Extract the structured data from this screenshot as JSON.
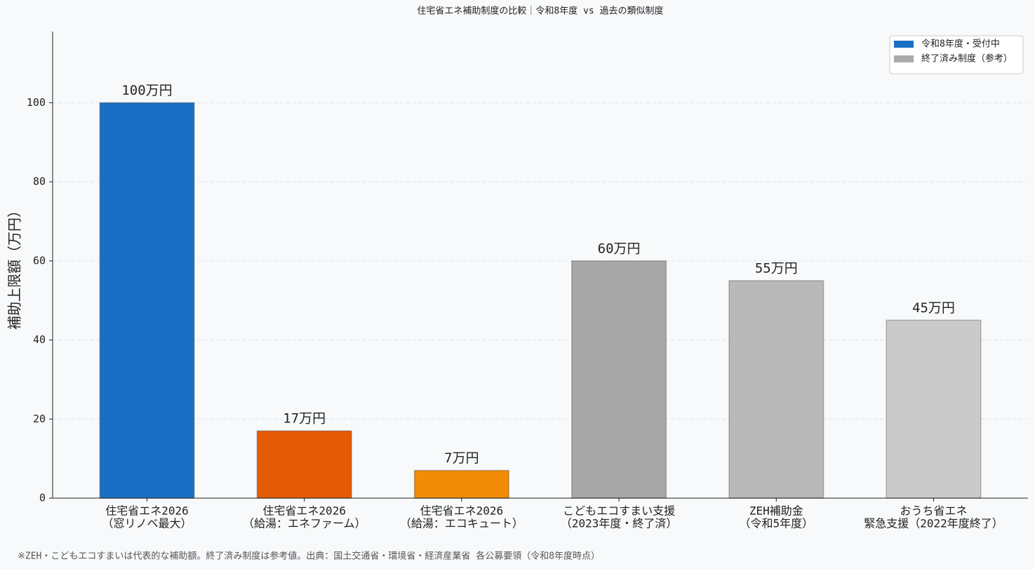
{
  "chart_data": {
    "type": "bar",
    "title": "住宅省エネ補助制度の比較｜令和8年度 vs 過去の類似制度",
    "ylabel": "補助上限額（万円）",
    "categories": [
      [
        "住宅省エネ2026",
        "（窓リノベ最大）"
      ],
      [
        "住宅省エネ2026",
        "（給湯：エネファーム）"
      ],
      [
        "住宅省エネ2026",
        "（給湯：エコキュート）"
      ],
      [
        "こどもエコすまい支援",
        "（2023年度・終了済）"
      ],
      [
        "ZEH補助金",
        "（令和5年度）"
      ],
      [
        "おうち省エネ",
        "緊急支援（2022年度終了）"
      ]
    ],
    "values": [
      100,
      17,
      7,
      60,
      55,
      45
    ],
    "value_labels": [
      "100万円",
      "17万円",
      "7万円",
      "60万円",
      "55万円",
      "45万円"
    ],
    "colors": [
      "#1a6fc4",
      "#e65c06",
      "#f28c06",
      "#a8a8a8",
      "#b9b9b9",
      "#cacaca"
    ],
    "ylim": [
      0,
      118
    ],
    "yticks": [
      0,
      20,
      40,
      60,
      80,
      100
    ],
    "grid": true,
    "legend": {
      "position": "upper right",
      "entries": [
        {
          "label": "令和8年度・受付中",
          "color": "#1a6fc4"
        },
        {
          "label": "終了済み制度（参考）",
          "color": "#aaaaaa"
        }
      ]
    },
    "footnote": "※ZEH・こどもエコすまいは代表的な補助額。終了済み制度は参考値。出典：国土交通省・環境省・経済産業省 各公募要領（令和8年度時点）"
  }
}
